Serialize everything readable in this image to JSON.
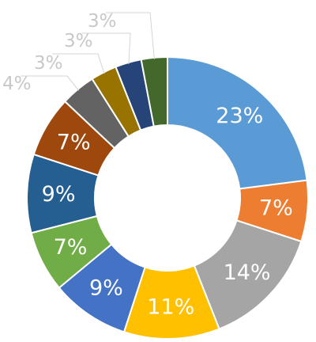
{
  "chart_data": {
    "type": "pie",
    "donut": true,
    "title": "",
    "slices": [
      {
        "value": 23,
        "label": "23%",
        "color": "#5b9bd5"
      },
      {
        "value": 7,
        "label": "7%",
        "color": "#ed7d31"
      },
      {
        "value": 14,
        "label": "14%",
        "color": "#a5a5a5"
      },
      {
        "value": 11,
        "label": "11%",
        "color": "#ffc000"
      },
      {
        "value": 9,
        "label": "9%",
        "color": "#4472c4"
      },
      {
        "value": 7,
        "label": "7%",
        "color": "#70ad47"
      },
      {
        "value": 9,
        "label": "9%",
        "color": "#255e91"
      },
      {
        "value": 7,
        "label": "7%",
        "color": "#9e480e"
      },
      {
        "value": 4,
        "label": "4%",
        "color": "#636363"
      },
      {
        "value": 3,
        "label": "3%",
        "color": "#997300"
      },
      {
        "value": 3,
        "label": "3%",
        "color": "#264478"
      },
      {
        "value": 3,
        "label": "3%",
        "color": "#43682b"
      }
    ],
    "legend": "none",
    "grid": false
  }
}
